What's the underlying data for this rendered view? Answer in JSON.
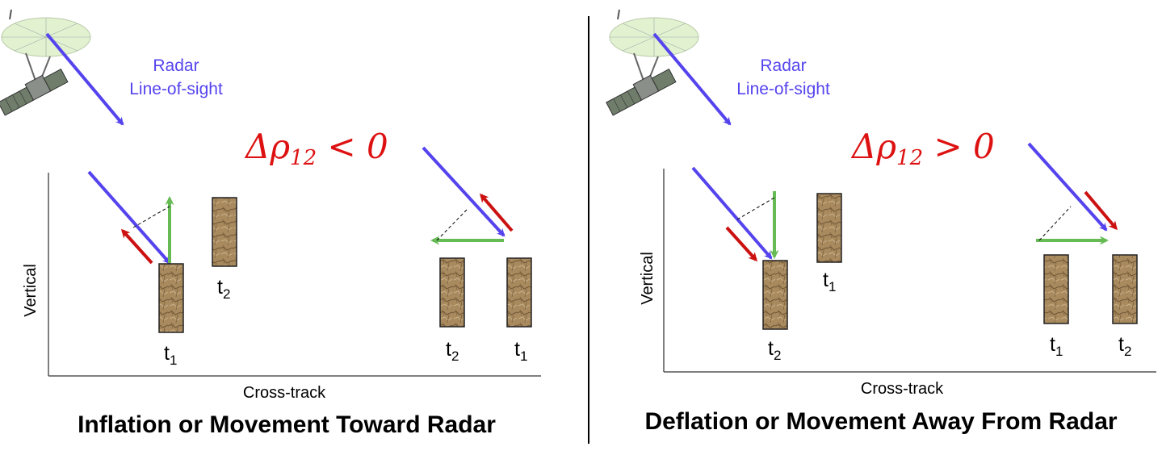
{
  "colors": {
    "radar_arrow": "#5544ee",
    "motion_arrow": "#cc1111",
    "vertical_green": "#66bb55",
    "equation": "#dd1111",
    "block_fill": "#a88a5e",
    "block_edge": "#222222"
  },
  "icons": [
    "satellite-icon",
    "rock-block-icon"
  ],
  "left_panel": {
    "los_label_line1": "Radar",
    "los_label_line2": "Line-of-sight",
    "eq_delta": "Δ",
    "eq_rho": "ρ",
    "eq_sub": "12",
    "eq_rest": " < 0",
    "y_axis_label": "Vertical",
    "x_axis_label": "Cross-track",
    "title": "Inflation or Movement Toward Radar",
    "labels": {
      "a_t1_main": "t",
      "a_t1_sub": "1",
      "a_t2_main": "t",
      "a_t2_sub": "2",
      "b_t2_main": "t",
      "b_t2_sub": "2",
      "b_t1_main": "t",
      "b_t1_sub": "1"
    }
  },
  "right_panel": {
    "los_label_line1": "Radar",
    "los_label_line2": "Line-of-sight",
    "eq_delta": "Δ",
    "eq_rho": "ρ",
    "eq_sub": "12",
    "eq_rest": " > 0",
    "y_axis_label": "Vertical",
    "x_axis_label": "Cross-track",
    "title": "Deflation or Movement Away From Radar",
    "labels": {
      "a_t2_main": "t",
      "a_t2_sub": "2",
      "a_t1_main": "t",
      "a_t1_sub": "1",
      "b_t1_main": "t",
      "b_t1_sub": "1",
      "b_t2_main": "t",
      "b_t2_sub": "2"
    }
  }
}
